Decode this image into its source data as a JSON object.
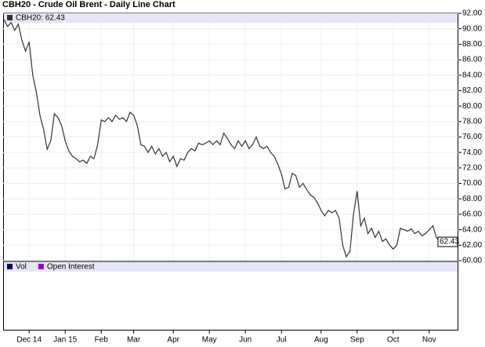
{
  "chart_data": {
    "type": "line",
    "title": "CBH20 - Crude Oil Brent - Daily Line Chart",
    "categories": [
      null,
      null,
      null,
      null,
      null,
      null,
      null,
      "Dec 14",
      null,
      null,
      null,
      null,
      null,
      null,
      null,
      null,
      null,
      "Jan 15",
      null,
      null,
      null,
      null,
      null,
      null,
      null,
      null,
      null,
      "Feb",
      null,
      null,
      null,
      null,
      null,
      null,
      null,
      null,
      "Mar",
      null,
      null,
      null,
      null,
      null,
      null,
      null,
      null,
      null,
      null,
      "Apr",
      null,
      null,
      null,
      null,
      null,
      null,
      null,
      null,
      null,
      "May",
      null,
      null,
      null,
      null,
      null,
      null,
      null,
      null,
      null,
      "Jun",
      null,
      null,
      null,
      null,
      null,
      null,
      null,
      null,
      null,
      "Jul",
      null,
      null,
      null,
      null,
      null,
      null,
      null,
      null,
      null,
      null,
      "Aug",
      null,
      null,
      null,
      null,
      null,
      null,
      null,
      null,
      null,
      "Sep",
      null,
      null,
      null,
      null,
      null,
      null,
      null,
      null,
      null,
      "Oct",
      null,
      null,
      null,
      null,
      null,
      null,
      null,
      null,
      null,
      "Nov",
      null,
      null,
      null
    ],
    "series": [
      {
        "name": "CBH20: 62.43",
        "color": "#333333",
        "values": [
          91.2,
          90.3,
          90.8,
          89.8,
          90.6,
          88.5,
          87.1,
          88.3,
          84.0,
          81.8,
          78.8,
          77.0,
          74.4,
          75.5,
          79.0,
          78.5,
          77.5,
          75.5,
          74.2,
          73.5,
          73.2,
          72.8,
          73.0,
          72.6,
          73.5,
          73.2,
          75.0,
          78.2,
          78.0,
          78.5,
          78.0,
          78.8,
          78.3,
          78.5,
          78.0,
          79.2,
          78.8,
          77.5,
          75.0,
          74.8,
          74.0,
          74.8,
          73.8,
          74.5,
          73.5,
          74.0,
          72.8,
          73.5,
          72.2,
          73.2,
          73.0,
          74.0,
          74.5,
          74.2,
          75.2,
          75.0,
          75.2,
          75.5,
          75.0,
          75.5,
          75.0,
          76.5,
          75.8,
          75.0,
          74.5,
          75.5,
          74.8,
          75.5,
          74.5,
          75.0,
          76.0,
          74.8,
          74.5,
          74.8,
          74.0,
          73.5,
          72.5,
          71.2,
          69.3,
          69.5,
          71.3,
          71.0,
          69.5,
          70.0,
          69.2,
          68.5,
          68.2,
          67.5,
          66.5,
          65.8,
          66.5,
          66.2,
          66.5,
          65.5,
          62.0,
          60.5,
          61.2,
          66.0,
          69.0,
          64.5,
          65.5,
          63.5,
          64.2,
          63.0,
          63.8,
          62.5,
          62.8,
          62.0,
          61.5,
          62.0,
          64.2,
          64.0,
          63.8,
          64.1,
          63.5,
          63.8,
          63.2,
          63.5,
          64.0,
          64.5,
          63.0,
          62.43
        ],
        "value_labels": [
          null,
          null,
          null,
          null,
          null,
          null,
          null,
          null,
          null,
          null,
          null,
          null,
          null,
          null,
          null,
          null,
          null,
          null,
          null,
          null,
          null,
          null,
          null,
          null,
          null,
          null,
          null,
          null,
          null,
          null,
          null,
          null,
          null,
          null,
          null,
          null,
          null,
          null,
          null,
          null,
          null,
          null,
          null,
          null,
          null,
          null,
          null,
          null,
          null,
          null,
          null,
          null,
          null,
          null,
          null,
          null,
          null,
          null,
          null,
          null,
          null,
          null,
          null,
          null,
          null,
          null,
          null,
          null,
          null,
          null,
          null,
          null,
          null,
          null,
          null,
          null,
          null,
          null,
          null,
          null,
          null,
          null,
          null,
          null,
          null,
          null,
          null,
          null,
          null,
          null,
          null,
          null,
          null,
          null,
          null,
          null,
          null,
          null,
          null,
          null,
          null,
          null,
          null,
          null,
          null,
          null,
          null,
          null,
          null,
          null,
          null,
          null,
          null,
          null,
          null,
          null,
          null,
          null,
          null,
          null,
          null,
          "62.43"
        ]
      }
    ],
    "ylim": [
      60,
      92
    ],
    "yticks": [
      {
        "value": 60,
        "label": "60.00"
      },
      {
        "value": 62,
        "label": "62.00"
      },
      {
        "value": 64,
        "label": "64.00"
      },
      {
        "value": 66,
        "label": "66.00"
      },
      {
        "value": 68,
        "label": "68.00"
      },
      {
        "value": 70,
        "label": "70.00"
      },
      {
        "value": 72,
        "label": "72.00"
      },
      {
        "value": 74,
        "label": "74.00"
      },
      {
        "value": 76,
        "label": "76.00"
      },
      {
        "value": 78,
        "label": "78.00"
      },
      {
        "value": 80,
        "label": "80.00"
      },
      {
        "value": 82,
        "label": "82.00"
      },
      {
        "value": 84,
        "label": "84.00"
      },
      {
        "value": 86,
        "label": "86.00"
      },
      {
        "value": 88,
        "label": "88.00"
      },
      {
        "value": 90,
        "label": "90.00"
      },
      {
        "value": 92,
        "label": "92.00"
      }
    ],
    "grid": true,
    "lower_panel": {
      "legend": [
        {
          "name": "Vol",
          "color": "#000066"
        },
        {
          "name": "Open Interest",
          "color": "#9900cc"
        }
      ]
    }
  }
}
